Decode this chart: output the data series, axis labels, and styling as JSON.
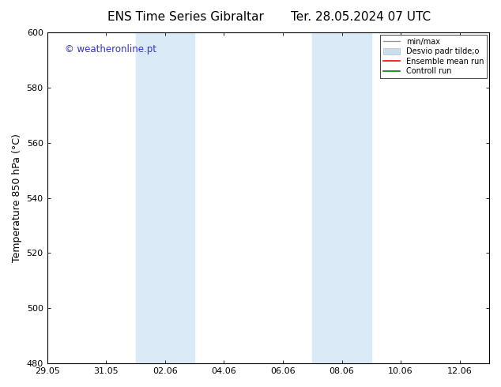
{
  "title_left": "ENS Time Series Gibraltar",
  "title_right": "Ter. 28.05.2024 07 UTC",
  "ylabel": "Temperature 850 hPa (°C)",
  "watermark": "© weatheronline.pt",
  "watermark_color": "#3333cc",
  "ylim": [
    480,
    600
  ],
  "yticks": [
    480,
    500,
    520,
    540,
    560,
    580,
    600
  ],
  "xlim": [
    0,
    15
  ],
  "xtick_labels": [
    "29.05",
    "31.05",
    "02.06",
    "04.06",
    "06.06",
    "08.06",
    "10.06",
    "12.06"
  ],
  "xtick_positions_days": [
    0,
    2,
    4,
    6,
    8,
    10,
    12,
    14
  ],
  "shade_bands": [
    {
      "xstart_day": 3.0,
      "xend_day": 5.0
    },
    {
      "xstart_day": 9.0,
      "xend_day": 11.0
    }
  ],
  "shade_color": "#daeaf7",
  "background_color": "#ffffff",
  "plot_bg_color": "#ffffff",
  "legend_labels": [
    "min/max",
    "Desvio padr tilde;o",
    "Ensemble mean run",
    "Controll run"
  ],
  "legend_colors": [
    "#999999",
    "#c8dff0",
    "#ff0000",
    "#008000"
  ],
  "spine_color": "#000000",
  "title_fontsize": 11,
  "label_fontsize": 9,
  "tick_fontsize": 8,
  "watermark_fontsize": 8.5
}
